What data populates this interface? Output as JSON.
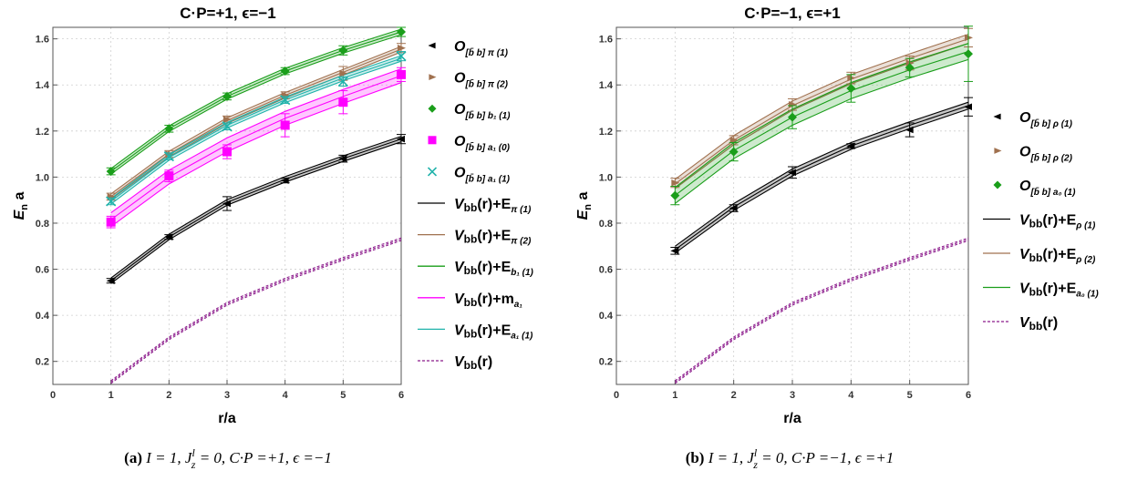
{
  "chart_data": [
    {
      "type": "line",
      "title": "C·P=+1, ϵ=−1",
      "xlabel": "r/a",
      "ylabel": "E_n a",
      "xlim": [
        0,
        6
      ],
      "ylim": [
        0.1,
        1.65
      ],
      "xticks": [
        "0",
        "1",
        "2",
        "3",
        "4",
        "5",
        "6"
      ],
      "yticks": [
        "0.2",
        "0.4",
        "0.6",
        "0.8",
        "1.0",
        "1.2",
        "1.4",
        "1.6"
      ],
      "caption": {
        "label": "(a)",
        "text": "I = 1,  J_z^l = 0,  C·P =+1,  ϵ =−1"
      },
      "x": [
        1,
        2,
        3,
        4,
        5,
        6
      ],
      "series": [
        {
          "name": "O[b̄ b] π (1)",
          "kind": "points",
          "marker": "triangle-left",
          "color": "#000000",
          "values": [
            0.55,
            0.74,
            0.885,
            0.985,
            1.08,
            1.165
          ],
          "err": [
            0.01,
            0.01,
            0.03,
            0.01,
            0.015,
            0.02
          ]
        },
        {
          "name": "O[b̄ b] π (2)",
          "kind": "points",
          "marker": "triangle-right",
          "color": "#A0714F",
          "values": [
            0.915,
            1.1,
            1.25,
            1.355,
            1.45,
            1.56
          ],
          "err": [
            0.015,
            0.015,
            0.015,
            0.015,
            0.03,
            0.02
          ]
        },
        {
          "name": "O[b̄ b] b1 (1)",
          "kind": "points",
          "marker": "diamond",
          "color": "#1A9E1A",
          "values": [
            1.025,
            1.21,
            1.35,
            1.46,
            1.55,
            1.63
          ],
          "err": [
            0.015,
            0.015,
            0.015,
            0.015,
            0.02,
            0.02
          ]
        },
        {
          "name": "O[b̄ b] a1 (0)",
          "kind": "points",
          "marker": "square",
          "color": "#FF00FF",
          "values": [
            0.805,
            1.005,
            1.11,
            1.225,
            1.325,
            1.445
          ],
          "err": [
            0.025,
            0.025,
            0.03,
            0.05,
            0.05,
            0.03
          ]
        },
        {
          "name": "O[b̄ b] a1 (1)",
          "kind": "points",
          "marker": "cross",
          "color": "#20B2AA",
          "values": [
            0.895,
            1.09,
            1.22,
            1.335,
            1.415,
            1.525
          ],
          "err": [
            0.015,
            0.015,
            0.015,
            0.015,
            0.02,
            0.02
          ]
        },
        {
          "name": "Vbb(r)+Eπ (1)",
          "kind": "band",
          "color": "#000000",
          "values": [
            0.55,
            0.74,
            0.89,
            0.99,
            1.08,
            1.165
          ],
          "halfwidth": 0.012
        },
        {
          "name": "Vbb(r)+Eπ (2)",
          "kind": "band",
          "color": "#A0714F",
          "values": [
            0.915,
            1.1,
            1.245,
            1.355,
            1.455,
            1.555
          ],
          "halfwidth": 0.012
        },
        {
          "name": "Vbb(r)+Eb1 (1)",
          "kind": "band",
          "color": "#1A9E1A",
          "values": [
            1.025,
            1.21,
            1.35,
            1.46,
            1.55,
            1.63
          ],
          "halfwidth": 0.012
        },
        {
          "name": "Vbb(r)+ma1",
          "kind": "band",
          "color": "#FF00FF",
          "values": [
            0.815,
            1.0,
            1.14,
            1.255,
            1.35,
            1.44
          ],
          "halfwidth": 0.03
        },
        {
          "name": "Vbb(r)+Ea1 (1)",
          "kind": "band",
          "color": "#20B2AA",
          "values": [
            0.895,
            1.085,
            1.225,
            1.335,
            1.43,
            1.515
          ],
          "halfwidth": 0.012
        },
        {
          "name": "Vbb(r)",
          "kind": "dashed",
          "color": "#8B1A8B",
          "values": [
            0.11,
            0.3,
            0.45,
            0.555,
            0.645,
            0.73
          ],
          "halfwidth": 0.006
        }
      ],
      "legend": [
        {
          "sym": "triangle-left",
          "color": "#000000",
          "main": "O",
          "sub": "[b̄ b] π (1)"
        },
        {
          "sym": "triangle-right",
          "color": "#A0714F",
          "main": "O",
          "sub": "[b̄ b] π (2)"
        },
        {
          "sym": "diamond",
          "color": "#1A9E1A",
          "main": "O",
          "sub": "[b̄ b] b₁ (1)"
        },
        {
          "sym": "square",
          "color": "#FF00FF",
          "main": "O",
          "sub": "[b̄ b] a₁ (0)"
        },
        {
          "sym": "cross",
          "color": "#20B2AA",
          "main": "O",
          "sub": "[b̄ b] a₁ (1)"
        },
        {
          "sym": "line",
          "color": "#000000",
          "main": "V",
          "mainsub": "bb",
          "rest": "(r)+E",
          "sub": "π (1)"
        },
        {
          "sym": "line",
          "color": "#A0714F",
          "main": "V",
          "mainsub": "bb",
          "rest": "(r)+E",
          "sub": "π (2)"
        },
        {
          "sym": "line",
          "color": "#1A9E1A",
          "main": "V",
          "mainsub": "bb",
          "rest": "(r)+E",
          "sub": "b₁ (1)"
        },
        {
          "sym": "line",
          "color": "#FF00FF",
          "main": "V",
          "mainsub": "bb",
          "rest": "(r)+m",
          "sub": "a₁"
        },
        {
          "sym": "line",
          "color": "#20B2AA",
          "main": "V",
          "mainsub": "bb",
          "rest": "(r)+E",
          "sub": "a₁ (1)"
        },
        {
          "sym": "dashed",
          "color": "#8B1A8B",
          "main": "V",
          "mainsub": "bb",
          "rest": "(r)",
          "sub": ""
        }
      ]
    },
    {
      "type": "line",
      "title": "C·P=−1, ϵ=+1",
      "xlabel": "r/a",
      "ylabel": "E_n a",
      "xlim": [
        0,
        6
      ],
      "ylim": [
        0.1,
        1.65
      ],
      "xticks": [
        "0",
        "1",
        "2",
        "3",
        "4",
        "5",
        "6"
      ],
      "yticks": [
        "0.2",
        "0.4",
        "0.6",
        "0.8",
        "1.0",
        "1.2",
        "1.4",
        "1.6"
      ],
      "caption": {
        "label": "(b)",
        "text": "I = 1,  J_z^l = 0,  C·P =−1,  ϵ =+1"
      },
      "x": [
        1,
        2,
        3,
        4,
        5,
        6
      ],
      "series": [
        {
          "name": "O[b̄ b] ρ (1)",
          "kind": "points",
          "marker": "triangle-left",
          "color": "#000000",
          "values": [
            0.68,
            0.865,
            1.02,
            1.135,
            1.205,
            1.305
          ],
          "err": [
            0.015,
            0.015,
            0.025,
            0.01,
            0.03,
            0.04
          ]
        },
        {
          "name": "O[b̄ b] ρ (2)",
          "kind": "points",
          "marker": "triangle-right",
          "color": "#A0714F",
          "values": [
            0.975,
            1.16,
            1.315,
            1.43,
            1.495,
            1.605
          ],
          "err": [
            0.02,
            0.02,
            0.025,
            0.025,
            0.03,
            0.04
          ]
        },
        {
          "name": "O[b̄ b] a0 (1)",
          "kind": "points",
          "marker": "diamond",
          "color": "#1A9E1A",
          "values": [
            0.92,
            1.11,
            1.26,
            1.385,
            1.475,
            1.535
          ],
          "err": [
            0.04,
            0.04,
            0.05,
            0.06,
            0.04,
            0.12
          ]
        },
        {
          "name": "Vbb(r)+Eρ (1)",
          "kind": "band",
          "color": "#000000",
          "values": [
            0.685,
            0.87,
            1.02,
            1.135,
            1.225,
            1.31
          ],
          "halfwidth": 0.015
        },
        {
          "name": "Vbb(r)+Eρ (2)",
          "kind": "band",
          "color": "#A0714F",
          "values": [
            0.97,
            1.16,
            1.31,
            1.425,
            1.515,
            1.6
          ],
          "halfwidth": 0.02
        },
        {
          "name": "Vbb(r)+Ea0 (1)",
          "kind": "band",
          "color": "#1A9E1A",
          "values": [
            0.92,
            1.115,
            1.26,
            1.375,
            1.465,
            1.545
          ],
          "halfwidth": 0.035
        },
        {
          "name": "Vbb(r)",
          "kind": "dashed",
          "color": "#8B1A8B",
          "values": [
            0.11,
            0.3,
            0.45,
            0.555,
            0.645,
            0.73
          ],
          "halfwidth": 0.006
        }
      ],
      "legend": [
        {
          "sym": "triangle-left",
          "color": "#000000",
          "main": "O",
          "sub": "[b̄ b] ρ (1)"
        },
        {
          "sym": "triangle-right",
          "color": "#A0714F",
          "main": "O",
          "sub": "[b̄ b] ρ (2)"
        },
        {
          "sym": "diamond",
          "color": "#1A9E1A",
          "main": "O",
          "sub": "[b̄ b] a₀ (1)"
        },
        {
          "sym": "line",
          "color": "#000000",
          "main": "V",
          "mainsub": "bb",
          "rest": "(r)+E",
          "sub": "ρ (1)"
        },
        {
          "sym": "line",
          "color": "#A0714F",
          "main": "V",
          "mainsub": "bb",
          "rest": "(r)+E",
          "sub": "ρ (2)"
        },
        {
          "sym": "line",
          "color": "#1A9E1A",
          "main": "V",
          "mainsub": "bb",
          "rest": "(r)+E",
          "sub": "a₀ (1)"
        },
        {
          "sym": "dashed",
          "color": "#8B1A8B",
          "main": "V",
          "mainsub": "bb",
          "rest": "(r)",
          "sub": ""
        }
      ]
    }
  ]
}
